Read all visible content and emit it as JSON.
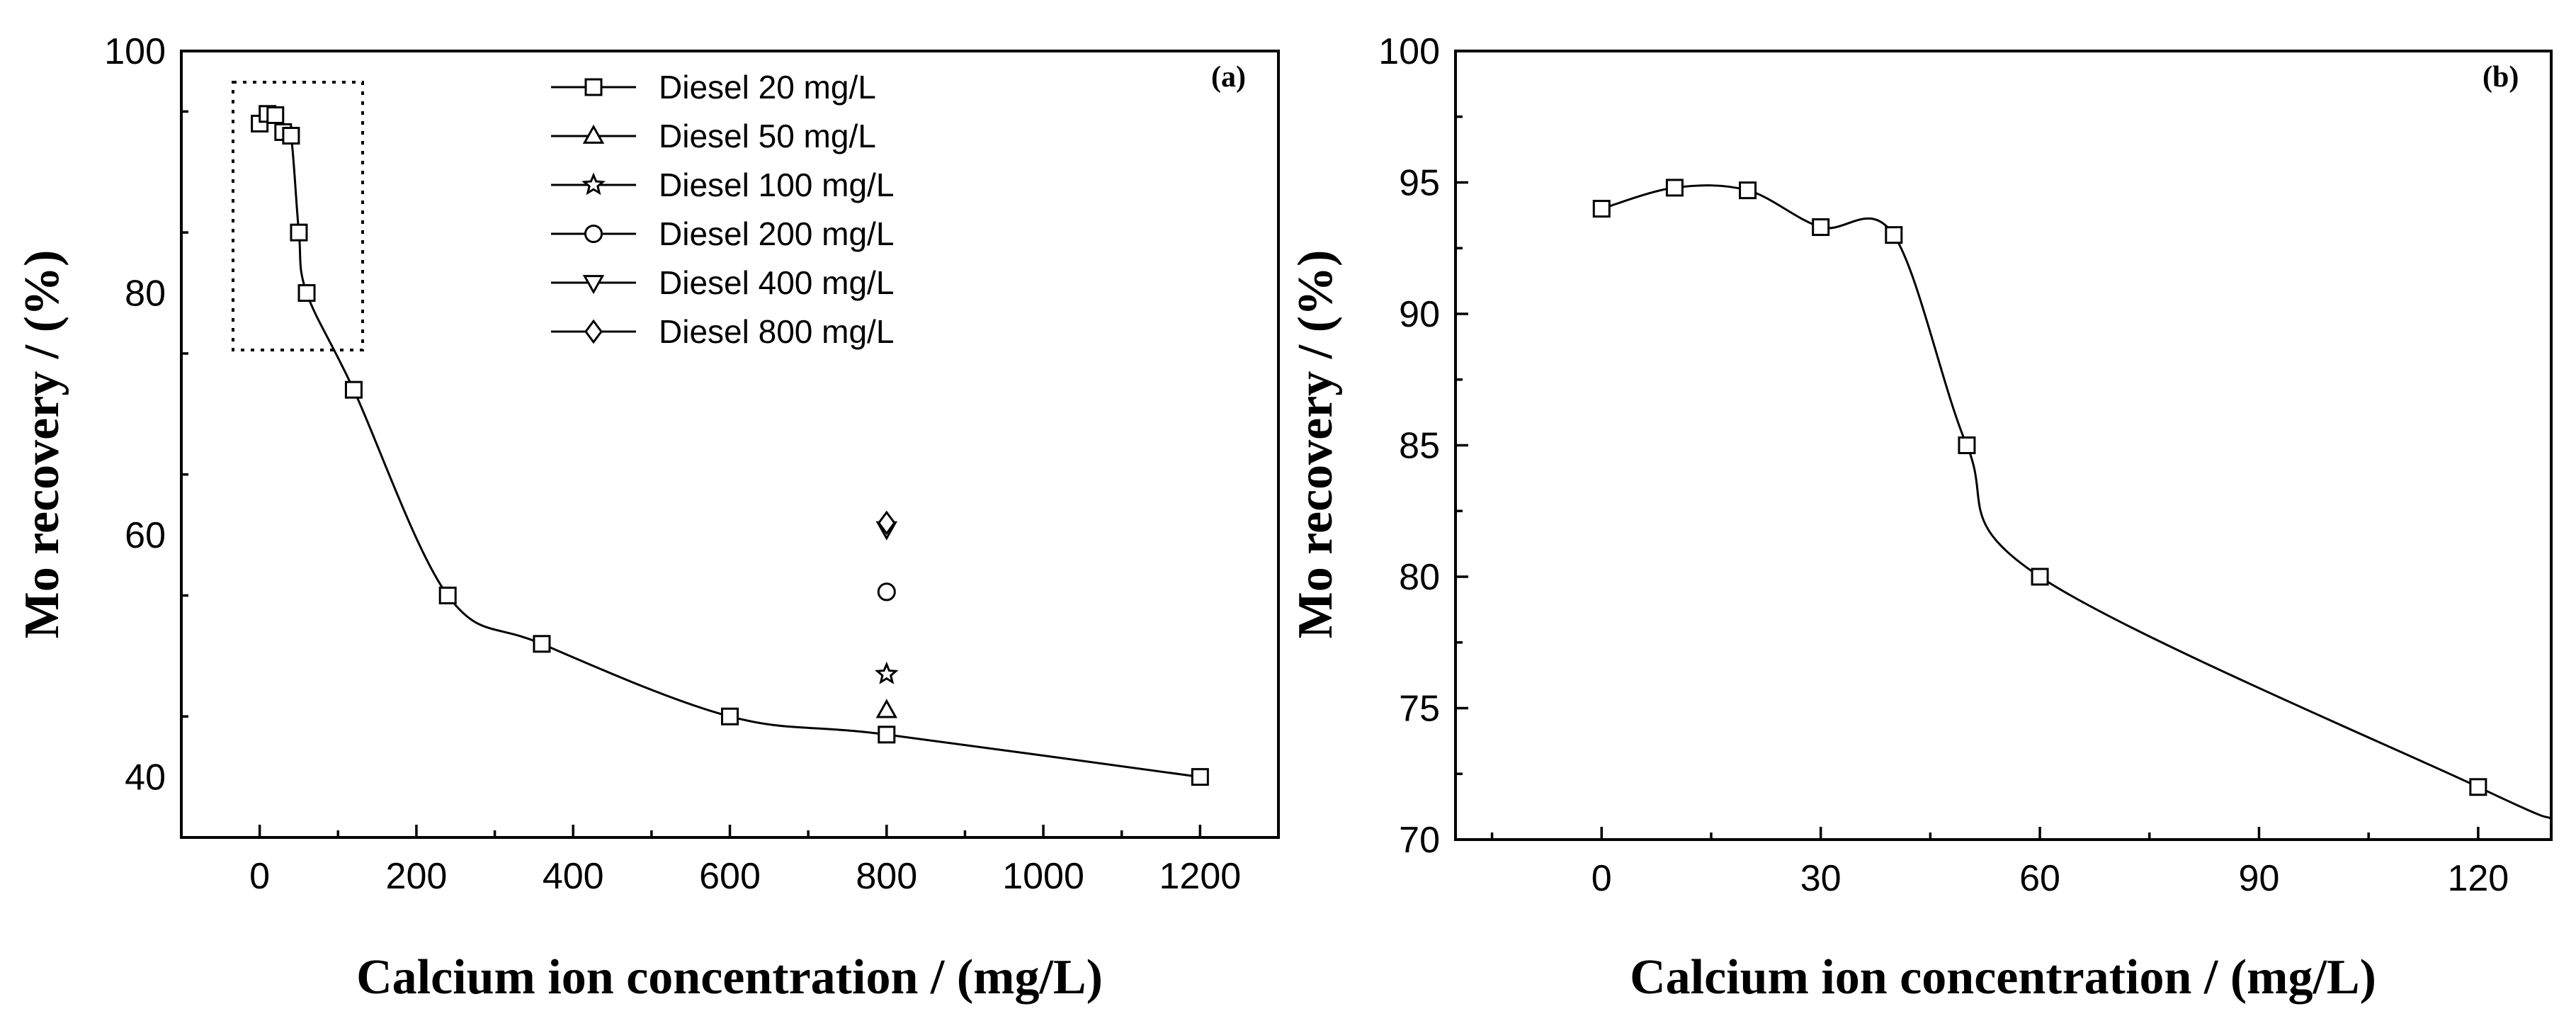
{
  "chart_data": [
    {
      "panel": "(a)",
      "type": "scatter",
      "title": "",
      "xlabel": "Calcium ion concentration / (mg/L)",
      "ylabel": "Mo recovery / (%)",
      "xlim": [
        -100,
        1300
      ],
      "ylim": [
        35,
        100
      ],
      "xticks": [
        0,
        200,
        400,
        600,
        800,
        1000,
        1200
      ],
      "yticks": [
        40,
        60,
        80,
        100
      ],
      "legend_position": "top-center",
      "series": [
        {
          "name": "Diesel 20 mg/L",
          "marker": "square",
          "line": true,
          "x": [
            0,
            10,
            20,
            30,
            40,
            50,
            60,
            120,
            240,
            360,
            600,
            800,
            1200
          ],
          "y": [
            94.0,
            94.8,
            94.7,
            93.3,
            93.0,
            85.0,
            80.0,
            72.0,
            55.0,
            51.0,
            45.0,
            43.5,
            40.0
          ]
        },
        {
          "name": "Diesel 50 mg/L",
          "marker": "triangle-up",
          "line": false,
          "x": [
            800
          ],
          "y": [
            45.5
          ]
        },
        {
          "name": "Diesel 100 mg/L",
          "marker": "star",
          "line": false,
          "x": [
            800
          ],
          "y": [
            48.5
          ]
        },
        {
          "name": "Diesel 200 mg/L",
          "marker": "circle",
          "line": false,
          "x": [
            800
          ],
          "y": [
            55.3
          ]
        },
        {
          "name": "Diesel 400 mg/L",
          "marker": "triangle-down",
          "line": false,
          "x": [
            800
          ],
          "y": [
            60.5
          ]
        },
        {
          "name": "Diesel 800 mg/L",
          "marker": "diamond",
          "line": false,
          "x": [
            800
          ],
          "y": [
            61.0
          ]
        }
      ],
      "annotation": "dotted box marks the 0–120 mg/L region enlarged in panel (b)"
    },
    {
      "panel": "(b)",
      "type": "line",
      "title": "",
      "xlabel": "Calcium ion concentration / (mg/L)",
      "ylabel": "Mo recovery / (%)",
      "xlim": [
        -20,
        130
      ],
      "ylim": [
        70,
        100
      ],
      "xticks": [
        0,
        30,
        60,
        90,
        120
      ],
      "yticks": [
        70,
        75,
        80,
        85,
        90,
        95,
        100
      ],
      "series": [
        {
          "name": "Diesel 20 mg/L",
          "marker": "square",
          "line": true,
          "x": [
            0,
            10,
            20,
            30,
            40,
            50,
            60,
            120
          ],
          "y": [
            94.0,
            94.8,
            94.7,
            93.3,
            93.0,
            85.0,
            80.0,
            72.0
          ]
        }
      ]
    }
  ]
}
